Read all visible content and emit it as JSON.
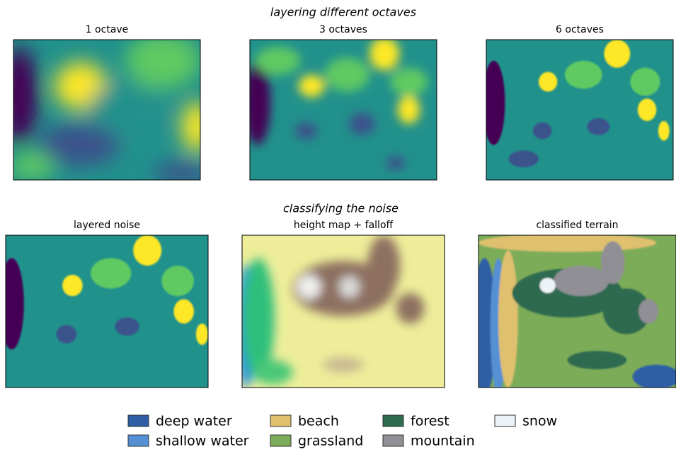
{
  "figure": {
    "sections": [
      {
        "title": "layering different octaves",
        "panels": [
          {
            "title": "1 octave"
          },
          {
            "title": "3 octaves"
          },
          {
            "title": "6 octaves"
          }
        ]
      },
      {
        "title": "classifying the noise",
        "panels": [
          {
            "title": "layered noise"
          },
          {
            "title": "height map + falloff"
          },
          {
            "title": "classified terrain"
          }
        ]
      }
    ],
    "legend": [
      {
        "name": "deep water",
        "color": "#2f5ea6"
      },
      {
        "name": "shallow water",
        "color": "#5590d4"
      },
      {
        "name": "beach",
        "color": "#dfc06e"
      },
      {
        "name": "grassland",
        "color": "#7dac59"
      },
      {
        "name": "forest",
        "color": "#2f6b4f"
      },
      {
        "name": "mountain",
        "color": "#8f8f95"
      },
      {
        "name": "snow",
        "color": "#eef3f7"
      }
    ]
  }
}
